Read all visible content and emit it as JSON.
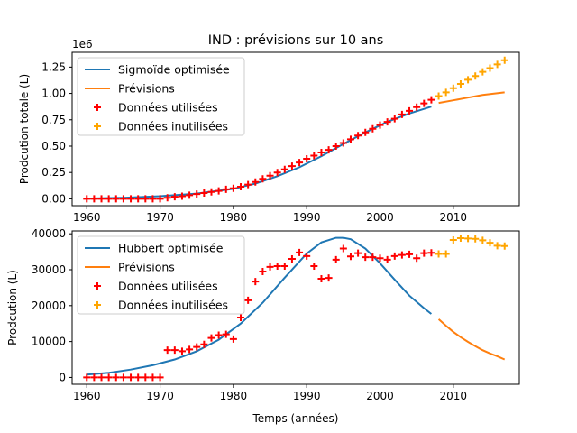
{
  "figure_title": "IND : prévisions sur 10 ans",
  "shared_xlabel": "Temps (années)",
  "colors": {
    "fit": "#1f77b4",
    "forecast": "#ff7f0e",
    "used": "#ff0000",
    "unused": "#ffa500"
  },
  "chart_data": [
    {
      "type": "line",
      "title": "IND : prévisions sur 10 ans",
      "xlabel": "",
      "ylabel": "Prodcution totale (L)",
      "offset_text": "1e6",
      "xlim": [
        1958,
        2019
      ],
      "ylim": [
        -0.065,
        1.39
      ],
      "xticks": [
        1960,
        1970,
        1980,
        1990,
        2000,
        2010
      ],
      "xtick_labels": [
        "1960",
        "1970",
        "1980",
        "1990",
        "2000",
        "2010"
      ],
      "yticks": [
        0,
        0.25,
        0.5,
        0.75,
        1.0,
        1.25
      ],
      "ytick_labels": [
        "0.00",
        "0.25",
        "0.50",
        "0.75",
        "1.00",
        "1.25"
      ],
      "legend": {
        "placement": "top-left",
        "entries": [
          {
            "label": "Sigmoïde optimisée",
            "kind": "line",
            "color": "#1f77b4"
          },
          {
            "label": "Prévisions",
            "kind": "line",
            "color": "#ff7f0e"
          },
          {
            "label": "Données utilisées",
            "kind": "marker",
            "color": "#ff0000"
          },
          {
            "label": "Données inutilisées",
            "kind": "marker",
            "color": "#ffa500"
          }
        ]
      },
      "series": [
        {
          "name": "Sigmoïde optimisée",
          "style": "line",
          "color": "#1f77b4",
          "x": [
            1960,
            1965,
            1970,
            1975,
            1980,
            1983,
            1986,
            1989,
            1992,
            1995,
            1998,
            2001,
            2004,
            2007
          ],
          "y": [
            0.003,
            0.01,
            0.025,
            0.05,
            0.095,
            0.145,
            0.215,
            0.3,
            0.405,
            0.52,
            0.63,
            0.73,
            0.81,
            0.875
          ]
        },
        {
          "name": "Prévisions",
          "style": "line",
          "color": "#ff7f0e",
          "x": [
            2008,
            2010,
            2012,
            2014,
            2017
          ],
          "y": [
            0.91,
            0.935,
            0.96,
            0.985,
            1.01
          ]
        },
        {
          "name": "Données utilisées",
          "style": "marker",
          "color": "#ff0000",
          "x": [
            1960,
            1961,
            1962,
            1963,
            1964,
            1965,
            1966,
            1967,
            1968,
            1969,
            1970,
            1971,
            1972,
            1973,
            1974,
            1975,
            1976,
            1977,
            1978,
            1979,
            1980,
            1981,
            1982,
            1983,
            1984,
            1985,
            1986,
            1987,
            1988,
            1989,
            1990,
            1991,
            1992,
            1993,
            1994,
            1995,
            1996,
            1997,
            1998,
            1999,
            2000,
            2001,
            2002,
            2003,
            2004,
            2005,
            2006,
            2007
          ],
          "y": [
            0,
            0,
            0,
            0,
            0,
            0,
            0,
            0,
            0,
            0,
            0,
            0.01,
            0.02,
            0.025,
            0.035,
            0.045,
            0.055,
            0.065,
            0.075,
            0.09,
            0.1,
            0.115,
            0.135,
            0.16,
            0.19,
            0.22,
            0.25,
            0.28,
            0.31,
            0.345,
            0.38,
            0.41,
            0.44,
            0.465,
            0.5,
            0.53,
            0.565,
            0.6,
            0.63,
            0.665,
            0.7,
            0.73,
            0.76,
            0.8,
            0.835,
            0.87,
            0.905,
            0.94
          ]
        },
        {
          "name": "Données inutilisées",
          "style": "marker",
          "color": "#ffa500",
          "x": [
            2008,
            2009,
            2010,
            2011,
            2012,
            2013,
            2014,
            2015,
            2016,
            2017
          ],
          "y": [
            0.975,
            1.01,
            1.05,
            1.09,
            1.13,
            1.165,
            1.205,
            1.24,
            1.275,
            1.315
          ]
        }
      ]
    },
    {
      "type": "line",
      "title": "",
      "xlabel": "Temps (années)",
      "ylabel": "Prodcution (L)",
      "offset_text": "",
      "xlim": [
        1958,
        2019
      ],
      "ylim": [
        -1900,
        40800
      ],
      "xticks": [
        1960,
        1970,
        1980,
        1990,
        2000,
        2010
      ],
      "xtick_labels": [
        "1960",
        "1970",
        "1980",
        "1990",
        "2000",
        "2010"
      ],
      "yticks": [
        0,
        10000,
        20000,
        30000,
        40000
      ],
      "ytick_labels": [
        "0",
        "10000",
        "20000",
        "30000",
        "40000"
      ],
      "legend": {
        "placement": "top-left",
        "entries": [
          {
            "label": "Hubbert optimisée",
            "kind": "line",
            "color": "#1f77b4"
          },
          {
            "label": "Prévisions",
            "kind": "line",
            "color": "#ff7f0e"
          },
          {
            "label": "Données utilisées",
            "kind": "marker",
            "color": "#ff0000"
          },
          {
            "label": "Données inutilisées",
            "kind": "marker",
            "color": "#ffa500"
          }
        ]
      },
      "series": [
        {
          "name": "Hubbert optimisée",
          "style": "line",
          "color": "#1f77b4",
          "x": [
            1960,
            1963,
            1966,
            1969,
            1972,
            1975,
            1978,
            1981,
            1984,
            1987,
            1990,
            1992,
            1994,
            1995,
            1996,
            1998,
            2000,
            2002,
            2004,
            2006,
            2007
          ],
          "y": [
            800,
            1300,
            2200,
            3400,
            5000,
            7300,
            10500,
            15000,
            20800,
            27800,
            34500,
            37600,
            38900,
            38900,
            38500,
            35900,
            31800,
            27200,
            22800,
            19300,
            17700
          ]
        },
        {
          "name": "Prévisions",
          "style": "line",
          "color": "#ff7f0e",
          "x": [
            2008,
            2009,
            2010,
            2011,
            2012,
            2013,
            2014,
            2015,
            2016,
            2017
          ],
          "y": [
            16200,
            14400,
            12700,
            11200,
            9900,
            8700,
            7600,
            6700,
            5900,
            5000
          ]
        },
        {
          "name": "Données utilisées",
          "style": "marker",
          "color": "#ff0000",
          "x": [
            1960,
            1961,
            1962,
            1963,
            1964,
            1965,
            1966,
            1967,
            1968,
            1969,
            1970,
            1971,
            1972,
            1973,
            1974,
            1975,
            1976,
            1977,
            1978,
            1979,
            1980,
            1981,
            1982,
            1983,
            1984,
            1985,
            1986,
            1987,
            1988,
            1989,
            1990,
            1991,
            1992,
            1993,
            1994,
            1995,
            1996,
            1997,
            1998,
            1999,
            2000,
            2001,
            2002,
            2003,
            2004,
            2005,
            2006,
            2007
          ],
          "y": [
            0,
            0,
            0,
            0,
            0,
            0,
            0,
            0,
            0,
            0,
            0,
            7600,
            7600,
            7300,
            7800,
            8500,
            9200,
            11000,
            11800,
            12000,
            10700,
            16700,
            21500,
            26700,
            29500,
            30800,
            31000,
            31000,
            33000,
            34800,
            33800,
            31000,
            27500,
            27700,
            32800,
            35900,
            33700,
            34600,
            33500,
            33500,
            33200,
            32800,
            33800,
            34100,
            34300,
            33200,
            34600,
            34700
          ]
        },
        {
          "name": "Données inutilisées",
          "style": "marker",
          "color": "#ffa500",
          "x": [
            2008,
            2009,
            2010,
            2011,
            2012,
            2013,
            2014,
            2015,
            2016,
            2017
          ],
          "y": [
            34400,
            34400,
            38300,
            38800,
            38700,
            38600,
            38200,
            37500,
            36700,
            36600
          ]
        }
      ]
    }
  ]
}
